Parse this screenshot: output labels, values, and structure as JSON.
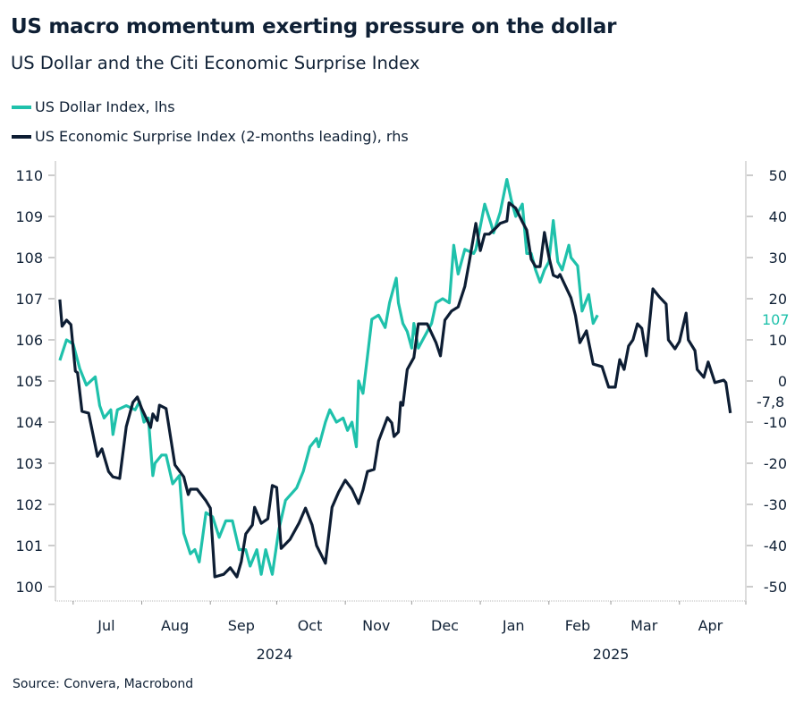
{
  "title": "US macro momentum exerting pressure on the dollar",
  "subtitle": "US Dollar and the Citi Economic Surprise Index",
  "source": "Source: Convera, Macrobond",
  "colors": {
    "dollar": "#1fc1ab",
    "surprise": "#0d1d33",
    "axis": "#b8b8b8"
  },
  "chart_data": {
    "type": "line",
    "title": "US macro momentum exerting pressure on the dollar",
    "subtitle": "US Dollar and the Citi Economic Surprise Index",
    "x_range": [
      "2024-06-23",
      "2025-05-01"
    ],
    "x_ticks": [
      {
        "label": "Jul",
        "date": "2024-07-16"
      },
      {
        "label": "Aug",
        "date": "2024-08-16"
      },
      {
        "label": "Sep",
        "date": "2024-09-15"
      },
      {
        "label": "Oct",
        "date": "2024-10-16"
      },
      {
        "label": "Nov",
        "date": "2024-11-15"
      },
      {
        "label": "Dec",
        "date": "2024-12-16"
      },
      {
        "label": "Jan",
        "date": "2025-01-16"
      },
      {
        "label": "Feb",
        "date": "2025-02-14"
      },
      {
        "label": "Mar",
        "date": "2025-03-16"
      },
      {
        "label": "Apr",
        "date": "2025-04-15"
      }
    ],
    "x_month_boundaries": [
      "2024-07-01",
      "2024-08-01",
      "2024-09-01",
      "2024-10-01",
      "2024-11-01",
      "2024-12-01",
      "2025-01-01",
      "2025-02-01",
      "2025-03-01",
      "2025-04-01",
      "2025-05-01"
    ],
    "year_labels": [
      {
        "label": "2024",
        "date": "2024-09-30"
      },
      {
        "label": "2025",
        "date": "2025-03-01"
      }
    ],
    "y_left": {
      "range": [
        100,
        110
      ],
      "ticks": [
        "100",
        "101",
        "102",
        "103",
        "104",
        "105",
        "106",
        "107",
        "108",
        "109",
        "110"
      ]
    },
    "y_right": {
      "range": [
        -50,
        50
      ],
      "ticks": [
        "-50",
        "-40",
        "-30",
        "-20",
        "-10",
        "0",
        "10",
        "20",
        "30",
        "40",
        "50"
      ]
    },
    "grid": false,
    "legend_placement": "top-left",
    "series": [
      {
        "name": "US Dollar Index, lhs",
        "axis": "left",
        "end_label": "107",
        "points": [
          [
            "2024-06-25",
            105.5
          ],
          [
            "2024-06-28",
            106.0
          ],
          [
            "2024-07-01",
            105.9
          ],
          [
            "2024-07-04",
            105.3
          ],
          [
            "2024-07-07",
            104.9
          ],
          [
            "2024-07-11",
            105.1
          ],
          [
            "2024-07-13",
            104.4
          ],
          [
            "2024-07-15",
            104.1
          ],
          [
            "2024-07-18",
            104.3
          ],
          [
            "2024-07-19",
            103.7
          ],
          [
            "2024-07-21",
            104.3
          ],
          [
            "2024-07-25",
            104.4
          ],
          [
            "2024-07-29",
            104.3
          ],
          [
            "2024-07-31",
            104.5
          ],
          [
            "2024-08-02",
            104.0
          ],
          [
            "2024-08-04",
            104.1
          ],
          [
            "2024-08-06",
            102.7
          ],
          [
            "2024-08-07",
            103.0
          ],
          [
            "2024-08-10",
            103.2
          ],
          [
            "2024-08-12",
            103.2
          ],
          [
            "2024-08-15",
            102.5
          ],
          [
            "2024-08-18",
            102.7
          ],
          [
            "2024-08-20",
            101.3
          ],
          [
            "2024-08-23",
            100.8
          ],
          [
            "2024-08-25",
            100.9
          ],
          [
            "2024-08-27",
            100.6
          ],
          [
            "2024-08-30",
            101.8
          ],
          [
            "2024-09-02",
            101.7
          ],
          [
            "2024-09-05",
            101.2
          ],
          [
            "2024-09-08",
            101.6
          ],
          [
            "2024-09-11",
            101.6
          ],
          [
            "2024-09-14",
            100.9
          ],
          [
            "2024-09-17",
            100.9
          ],
          [
            "2024-09-19",
            100.5
          ],
          [
            "2024-09-22",
            100.9
          ],
          [
            "2024-09-24",
            100.3
          ],
          [
            "2024-09-26",
            100.9
          ],
          [
            "2024-09-29",
            100.3
          ],
          [
            "2024-10-02",
            101.4
          ],
          [
            "2024-10-05",
            102.1
          ],
          [
            "2024-10-10",
            102.4
          ],
          [
            "2024-10-13",
            102.8
          ],
          [
            "2024-10-16",
            103.4
          ],
          [
            "2024-10-19",
            103.6
          ],
          [
            "2024-10-20",
            103.4
          ],
          [
            "2024-10-23",
            104.0
          ],
          [
            "2024-10-25",
            104.3
          ],
          [
            "2024-10-28",
            104.0
          ],
          [
            "2024-10-31",
            104.1
          ],
          [
            "2024-11-02",
            103.8
          ],
          [
            "2024-11-04",
            104.0
          ],
          [
            "2024-11-06",
            103.4
          ],
          [
            "2024-11-07",
            105.0
          ],
          [
            "2024-11-09",
            104.7
          ],
          [
            "2024-11-11",
            105.6
          ],
          [
            "2024-11-13",
            106.5
          ],
          [
            "2024-11-16",
            106.6
          ],
          [
            "2024-11-19",
            106.3
          ],
          [
            "2024-11-21",
            106.9
          ],
          [
            "2024-11-24",
            107.5
          ],
          [
            "2024-11-25",
            106.9
          ],
          [
            "2024-11-27",
            106.4
          ],
          [
            "2024-11-29",
            106.2
          ],
          [
            "2024-12-01",
            105.8
          ],
          [
            "2024-12-02",
            106.4
          ],
          [
            "2024-12-04",
            105.8
          ],
          [
            "2024-12-06",
            106.0
          ],
          [
            "2024-12-08",
            106.2
          ],
          [
            "2024-12-10",
            106.4
          ],
          [
            "2024-12-12",
            106.9
          ],
          [
            "2024-12-15",
            107.0
          ],
          [
            "2024-12-18",
            106.9
          ],
          [
            "2024-12-20",
            108.3
          ],
          [
            "2024-12-22",
            107.6
          ],
          [
            "2024-12-25",
            108.2
          ],
          [
            "2024-12-29",
            108.1
          ],
          [
            "2024-12-30",
            108.2
          ],
          [
            "2025-01-03",
            109.3
          ],
          [
            "2025-01-06",
            108.8
          ],
          [
            "2025-01-07",
            108.6
          ],
          [
            "2025-01-10",
            109.1
          ],
          [
            "2025-01-13",
            109.9
          ],
          [
            "2025-01-15",
            109.4
          ],
          [
            "2025-01-17",
            109.0
          ],
          [
            "2025-01-20",
            109.3
          ],
          [
            "2025-01-22",
            108.1
          ],
          [
            "2025-01-24",
            108.1
          ],
          [
            "2025-01-26",
            107.7
          ],
          [
            "2025-01-28",
            107.4
          ],
          [
            "2025-01-30",
            107.7
          ],
          [
            "2025-02-01",
            107.9
          ],
          [
            "2025-02-03",
            108.9
          ],
          [
            "2025-02-05",
            107.9
          ],
          [
            "2025-02-07",
            107.7
          ],
          [
            "2025-02-10",
            108.3
          ],
          [
            "2025-02-11",
            108.0
          ],
          [
            "2025-02-14",
            107.8
          ],
          [
            "2025-02-16",
            106.7
          ],
          [
            "2025-02-19",
            107.1
          ],
          [
            "2025-02-21",
            106.4
          ],
          [
            "2025-02-23",
            106.6
          ]
        ]
      },
      {
        "name": "US Economic Surprise Index (2-months leading), rhs",
        "axis": "right",
        "end_label": "-7,8",
        "points": [
          [
            "2024-06-25",
            19.8
          ],
          [
            "2024-06-26",
            13.3
          ],
          [
            "2024-06-28",
            14.8
          ],
          [
            "2024-06-30",
            13.7
          ],
          [
            "2024-07-02",
            2.4
          ],
          [
            "2024-07-03",
            2.0
          ],
          [
            "2024-07-05",
            -7.4
          ],
          [
            "2024-07-08",
            -7.8
          ],
          [
            "2024-07-12",
            -18.3
          ],
          [
            "2024-07-14",
            -16.5
          ],
          [
            "2024-07-17",
            -22.0
          ],
          [
            "2024-07-19",
            -23.3
          ],
          [
            "2024-07-22",
            -23.7
          ],
          [
            "2024-07-25",
            -11.1
          ],
          [
            "2024-07-28",
            -5.2
          ],
          [
            "2024-07-30",
            -3.9
          ],
          [
            "2024-08-01",
            -6.7
          ],
          [
            "2024-08-05",
            -11.3
          ],
          [
            "2024-08-06",
            -8.0
          ],
          [
            "2024-08-08",
            -9.6
          ],
          [
            "2024-08-09",
            -5.9
          ],
          [
            "2024-08-12",
            -6.7
          ],
          [
            "2024-08-16",
            -20.4
          ],
          [
            "2024-08-20",
            -23.3
          ],
          [
            "2024-08-22",
            -27.6
          ],
          [
            "2024-08-23",
            -26.3
          ],
          [
            "2024-08-26",
            -26.3
          ],
          [
            "2024-08-30",
            -29.1
          ],
          [
            "2024-09-01",
            -30.9
          ],
          [
            "2024-09-03",
            -47.6
          ],
          [
            "2024-09-07",
            -47.0
          ],
          [
            "2024-09-10",
            -45.4
          ],
          [
            "2024-09-13",
            -47.6
          ],
          [
            "2024-09-15",
            -43.9
          ],
          [
            "2024-09-17",
            -37.2
          ],
          [
            "2024-09-20",
            -35.0
          ],
          [
            "2024-09-21",
            -30.7
          ],
          [
            "2024-09-24",
            -34.6
          ],
          [
            "2024-09-27",
            -33.5
          ],
          [
            "2024-09-29",
            -25.4
          ],
          [
            "2024-10-01",
            -25.9
          ],
          [
            "2024-10-03",
            -40.7
          ],
          [
            "2024-10-07",
            -38.5
          ],
          [
            "2024-10-11",
            -34.6
          ],
          [
            "2024-10-14",
            -30.9
          ],
          [
            "2024-10-17",
            -35.0
          ],
          [
            "2024-10-19",
            -40.0
          ],
          [
            "2024-10-23",
            -44.3
          ],
          [
            "2024-10-26",
            -30.7
          ],
          [
            "2024-10-29",
            -27.0
          ],
          [
            "2024-11-01",
            -24.1
          ],
          [
            "2024-11-04",
            -26.3
          ],
          [
            "2024-11-07",
            -29.8
          ],
          [
            "2024-11-09",
            -26.5
          ],
          [
            "2024-11-11",
            -22.0
          ],
          [
            "2024-11-14",
            -21.5
          ],
          [
            "2024-11-16",
            -14.6
          ],
          [
            "2024-11-20",
            -8.9
          ],
          [
            "2024-11-22",
            -10.2
          ],
          [
            "2024-11-23",
            -13.5
          ],
          [
            "2024-11-25",
            -12.4
          ],
          [
            "2024-11-26",
            -5.2
          ],
          [
            "2024-11-27",
            -5.9
          ],
          [
            "2024-11-29",
            2.8
          ],
          [
            "2024-12-02",
            5.7
          ],
          [
            "2024-12-04",
            13.9
          ],
          [
            "2024-12-08",
            13.9
          ],
          [
            "2024-12-12",
            9.3
          ],
          [
            "2024-12-14",
            6.1
          ],
          [
            "2024-12-16",
            14.8
          ],
          [
            "2024-12-19",
            17.0
          ],
          [
            "2024-12-22",
            18.0
          ],
          [
            "2024-12-25",
            23.0
          ],
          [
            "2024-12-27",
            28.9
          ],
          [
            "2024-12-30",
            38.3
          ],
          [
            "2025-01-01",
            31.7
          ],
          [
            "2025-01-03",
            35.7
          ],
          [
            "2025-01-05",
            35.7
          ],
          [
            "2025-01-08",
            37.2
          ],
          [
            "2025-01-10",
            38.3
          ],
          [
            "2025-01-13",
            38.9
          ],
          [
            "2025-01-14",
            43.3
          ],
          [
            "2025-01-17",
            42.0
          ],
          [
            "2025-01-20",
            38.7
          ],
          [
            "2025-01-22",
            36.7
          ],
          [
            "2025-01-24",
            29.6
          ],
          [
            "2025-01-26",
            27.8
          ],
          [
            "2025-01-28",
            27.8
          ],
          [
            "2025-01-30",
            36.1
          ],
          [
            "2025-02-01",
            30.2
          ],
          [
            "2025-02-03",
            25.7
          ],
          [
            "2025-02-05",
            25.2
          ],
          [
            "2025-02-06",
            25.9
          ],
          [
            "2025-02-11",
            20.2
          ],
          [
            "2025-02-13",
            15.9
          ],
          [
            "2025-02-15",
            9.3
          ],
          [
            "2025-02-18",
            12.2
          ],
          [
            "2025-02-21",
            4.1
          ],
          [
            "2025-02-25",
            3.5
          ],
          [
            "2025-02-28",
            -1.5
          ],
          [
            "2025-03-03",
            -1.5
          ],
          [
            "2025-03-05",
            5.2
          ],
          [
            "2025-03-07",
            2.8
          ],
          [
            "2025-03-09",
            8.5
          ],
          [
            "2025-03-11",
            10.0
          ],
          [
            "2025-03-13",
            13.9
          ],
          [
            "2025-03-15",
            12.8
          ],
          [
            "2025-03-17",
            6.1
          ],
          [
            "2025-03-20",
            22.4
          ],
          [
            "2025-03-23",
            20.4
          ],
          [
            "2025-03-26",
            18.7
          ],
          [
            "2025-03-27",
            10.0
          ],
          [
            "2025-03-30",
            7.8
          ],
          [
            "2025-04-01",
            9.6
          ],
          [
            "2025-04-04",
            16.5
          ],
          [
            "2025-04-05",
            10.0
          ],
          [
            "2025-04-08",
            7.4
          ],
          [
            "2025-04-09",
            2.8
          ],
          [
            "2025-04-12",
            0.9
          ],
          [
            "2025-04-14",
            4.6
          ],
          [
            "2025-04-17",
            -0.4
          ],
          [
            "2025-04-21",
            0.2
          ],
          [
            "2025-04-22",
            -0.4
          ],
          [
            "2025-04-24",
            -7.8
          ]
        ]
      }
    ]
  }
}
